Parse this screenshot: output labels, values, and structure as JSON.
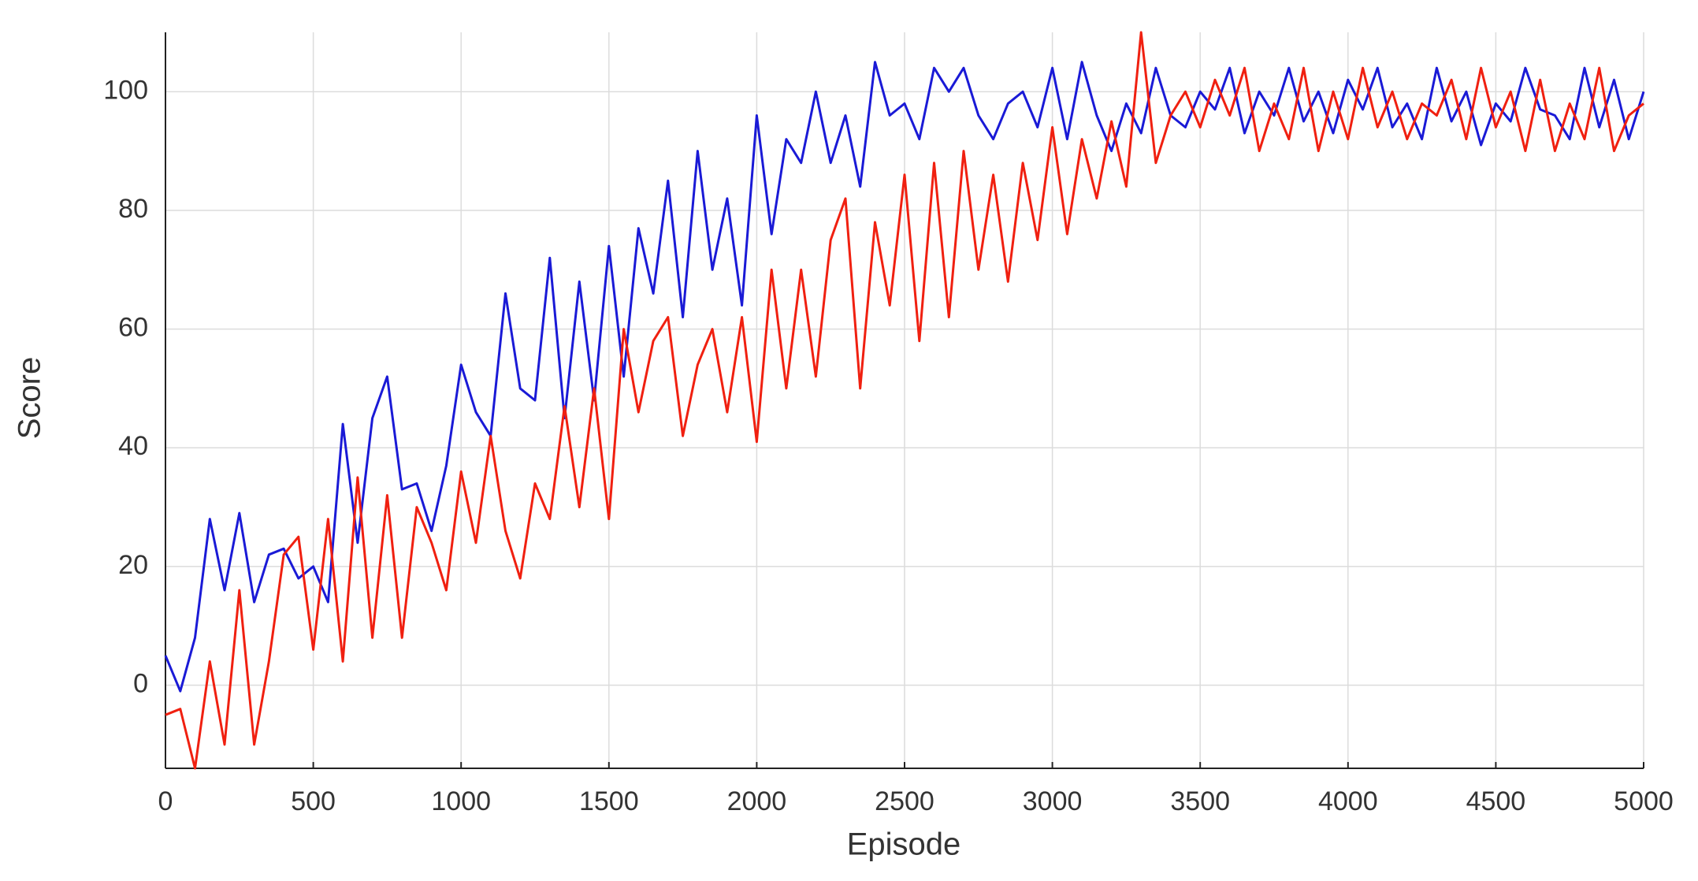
{
  "chart_data": {
    "type": "line",
    "x_label": "Episode",
    "y_label": "Score",
    "x": [
      0,
      50,
      100,
      150,
      200,
      250,
      300,
      350,
      400,
      450,
      500,
      550,
      600,
      650,
      700,
      750,
      800,
      850,
      900,
      950,
      1000,
      1050,
      1100,
      1150,
      1200,
      1250,
      1300,
      1350,
      1400,
      1450,
      1500,
      1550,
      1600,
      1650,
      1700,
      1750,
      1800,
      1850,
      1900,
      1950,
      2000,
      2050,
      2100,
      2150,
      2200,
      2250,
      2300,
      2350,
      2400,
      2450,
      2500,
      2550,
      2600,
      2650,
      2700,
      2750,
      2800,
      2850,
      2900,
      2950,
      3000,
      3050,
      3100,
      3150,
      3200,
      3250,
      3300,
      3350,
      3400,
      3450,
      3500,
      3550,
      3600,
      3650,
      3700,
      3750,
      3800,
      3850,
      3900,
      3950,
      4000,
      4050,
      4100,
      4150,
      4200,
      4250,
      4300,
      4350,
      4400,
      4450,
      4500,
      4550,
      4600,
      4650,
      4700,
      4750,
      4800,
      4850,
      4900,
      4950,
      5000
    ],
    "series": [
      {
        "color": "#1a1ad6",
        "values": [
          5,
          -1,
          8,
          28,
          16,
          29,
          14,
          22,
          23,
          18,
          20,
          14,
          44,
          24,
          45,
          52,
          33,
          34,
          26,
          37,
          54,
          46,
          42,
          66,
          50,
          48,
          72,
          45,
          68,
          48,
          74,
          52,
          77,
          66,
          85,
          62,
          90,
          70,
          82,
          64,
          96,
          76,
          92,
          88,
          100,
          88,
          96,
          84,
          105,
          96,
          98,
          92,
          104,
          100,
          104,
          96,
          92,
          98,
          100,
          94,
          104,
          92,
          105,
          96,
          90,
          98,
          93,
          104,
          96,
          94,
          100,
          97,
          104,
          93,
          100,
          96,
          104,
          95,
          100,
          93,
          102,
          97,
          104,
          94,
          98,
          92,
          104,
          95,
          100,
          91,
          98,
          95,
          104,
          97,
          96,
          92,
          104,
          94,
          102,
          92,
          100
        ]
      },
      {
        "color": "#f02010",
        "values": [
          -5,
          -4,
          -14,
          4,
          -10,
          16,
          -10,
          4,
          22,
          25,
          6,
          28,
          4,
          35,
          8,
          32,
          8,
          30,
          24,
          16,
          36,
          24,
          42,
          26,
          18,
          34,
          28,
          47,
          30,
          50,
          28,
          60,
          46,
          58,
          62,
          42,
          54,
          60,
          46,
          62,
          41,
          70,
          50,
          70,
          52,
          75,
          82,
          50,
          78,
          64,
          86,
          58,
          88,
          62,
          90,
          70,
          86,
          68,
          88,
          75,
          94,
          76,
          92,
          82,
          95,
          84,
          110,
          88,
          96,
          100,
          94,
          102,
          96,
          104,
          90,
          98,
          92,
          104,
          90,
          100,
          92,
          104,
          94,
          100,
          92,
          98,
          96,
          102,
          92,
          104,
          94,
          100,
          90,
          102,
          90,
          98,
          92,
          104,
          90,
          96,
          98
        ]
      }
    ],
    "xlim": [
      0,
      5000
    ],
    "xticks": [
      0,
      500,
      1000,
      1500,
      2000,
      2500,
      3000,
      3500,
      4000,
      4500,
      5000
    ],
    "ylim": [
      -14,
      110
    ],
    "yticks": [
      0,
      20,
      40,
      60,
      80,
      100
    ],
    "grid": true
  }
}
